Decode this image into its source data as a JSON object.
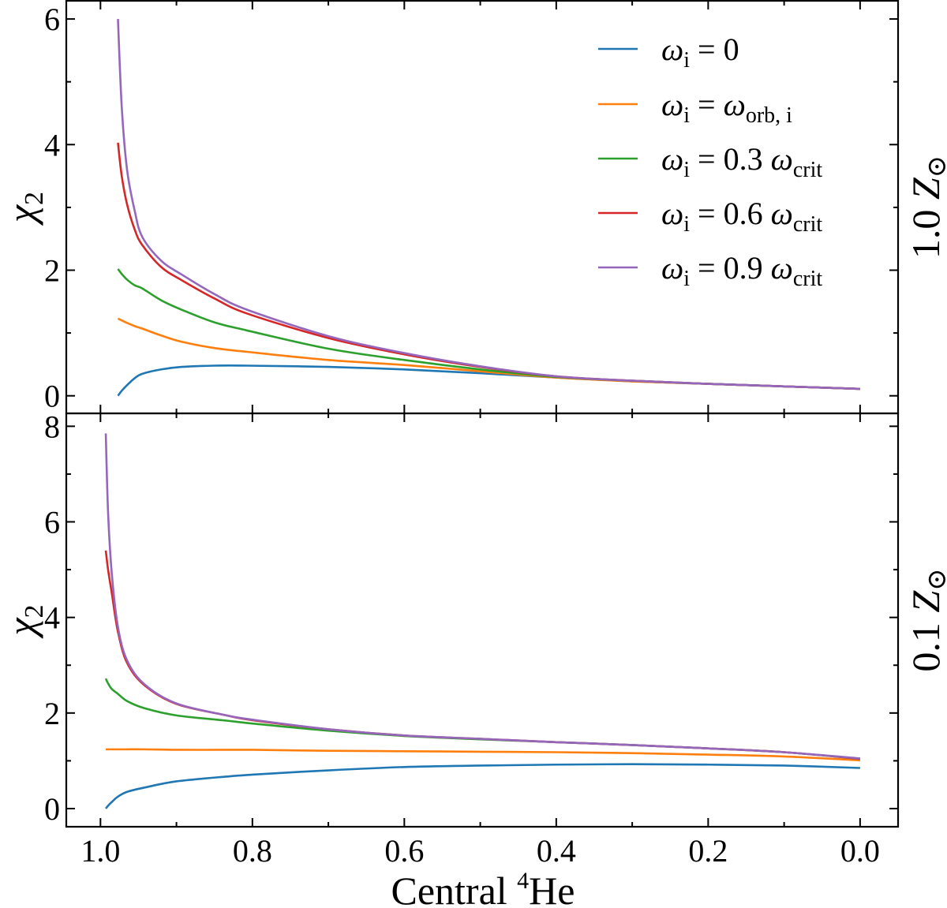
{
  "chart_data": [
    {
      "type": "line",
      "panel_label": {
        "value": "1.0",
        "symbol": "Z",
        "sub": "⊙"
      },
      "ylabel": {
        "symbol": "χ",
        "sub": "2"
      },
      "xlabel": "",
      "xlim": [
        1.045,
        -0.05
      ],
      "ylim": [
        -0.28,
        6.29
      ],
      "x_ticks": [
        "1.0",
        "0.8",
        "0.6",
        "0.4",
        "0.2",
        "0.0"
      ],
      "y_ticks": [
        "0",
        "2",
        "4",
        "6"
      ],
      "legend_placement": "top-right",
      "x": [
        0.977,
        0.972,
        0.965,
        0.955,
        0.945,
        0.92,
        0.893,
        0.85,
        0.807,
        0.7,
        0.6,
        0.5,
        0.4,
        0.3,
        0.2,
        0.1,
        0.0
      ],
      "series": [
        {
          "name": "ωi = 0",
          "legend": {
            "lhs": "ω",
            "lhs_sub": "i",
            "rhs": " = 0",
            "rhs_sub": ""
          },
          "color": "#1f77b4",
          "values": [
            0.0,
            0.08,
            0.17,
            0.28,
            0.35,
            0.42,
            0.46,
            0.48,
            0.48,
            0.46,
            0.42,
            0.36,
            0.29,
            0.23,
            0.19,
            0.15,
            0.11
          ]
        },
        {
          "name": "ωi = ωorb,i",
          "legend": {
            "lhs": "ω",
            "lhs_sub": "i",
            "rhs": " = ω",
            "rhs_sub": "orb, i"
          },
          "color": "#ff7f0e",
          "values": [
            1.23,
            1.2,
            1.16,
            1.11,
            1.07,
            0.96,
            0.86,
            0.76,
            0.7,
            0.57,
            0.49,
            0.39,
            0.29,
            0.23,
            0.19,
            0.15,
            0.11
          ]
        },
        {
          "name": "ωi = 0.3 ωcrit",
          "legend": {
            "lhs": "ω",
            "lhs_sub": "i",
            "rhs": " = 0.3 ω",
            "rhs_sub": "crit"
          },
          "color": "#2ca02c",
          "values": [
            2.02,
            1.94,
            1.85,
            1.76,
            1.71,
            1.52,
            1.37,
            1.17,
            1.04,
            0.75,
            0.57,
            0.42,
            0.3,
            0.24,
            0.19,
            0.15,
            0.11
          ]
        },
        {
          "name": "ωi = 0.6 ωcrit",
          "legend": {
            "lhs": "ω",
            "lhs_sub": "i",
            "rhs": " = 0.6 ω",
            "rhs_sub": "crit"
          },
          "color": "#d62728",
          "values": [
            4.03,
            3.5,
            3.05,
            2.65,
            2.4,
            2.05,
            1.84,
            1.55,
            1.31,
            0.92,
            0.66,
            0.46,
            0.31,
            0.24,
            0.19,
            0.15,
            0.11
          ]
        },
        {
          "name": "ωi = 0.9 ωcrit",
          "legend": {
            "lhs": "ω",
            "lhs_sub": "i",
            "rhs": " = 0.9 ω",
            "rhs_sub": "crit"
          },
          "color": "#9467bd",
          "values": [
            6.0,
            4.6,
            3.6,
            2.95,
            2.53,
            2.15,
            1.93,
            1.62,
            1.37,
            0.95,
            0.68,
            0.47,
            0.31,
            0.24,
            0.19,
            0.15,
            0.11
          ]
        }
      ]
    },
    {
      "type": "line",
      "panel_label": {
        "value": "0.1",
        "symbol": "Z",
        "sub": "⊙"
      },
      "ylabel": {
        "symbol": "χ",
        "sub": "2"
      },
      "xlabel": {
        "text": "Central ",
        "sup": "4",
        "tail": "He"
      },
      "xlim": [
        1.045,
        -0.05
      ],
      "ylim": [
        -0.38,
        8.27
      ],
      "x_ticks": [
        "1.0",
        "0.8",
        "0.6",
        "0.4",
        "0.2",
        "0.0"
      ],
      "y_ticks": [
        "0",
        "2",
        "4",
        "6",
        "8"
      ],
      "x": [
        0.993,
        0.99,
        0.985,
        0.977,
        0.965,
        0.942,
        0.9,
        0.834,
        0.8,
        0.7,
        0.6,
        0.5,
        0.4,
        0.3,
        0.2,
        0.1,
        0.0
      ],
      "series": [
        {
          "name": "ωi = 0",
          "color": "#1f77b4",
          "values": [
            0.0,
            0.06,
            0.14,
            0.25,
            0.35,
            0.44,
            0.57,
            0.67,
            0.71,
            0.8,
            0.87,
            0.9,
            0.92,
            0.93,
            0.92,
            0.9,
            0.85
          ]
        },
        {
          "name": "ωi = ωorb,i",
          "color": "#ff7f0e",
          "values": [
            1.24,
            1.24,
            1.24,
            1.24,
            1.24,
            1.24,
            1.23,
            1.23,
            1.23,
            1.21,
            1.2,
            1.19,
            1.18,
            1.16,
            1.13,
            1.09,
            1.01
          ]
        },
        {
          "name": "ωi = 0.3 ωcrit",
          "color": "#2ca02c",
          "values": [
            2.72,
            2.62,
            2.5,
            2.4,
            2.25,
            2.1,
            1.95,
            1.84,
            1.78,
            1.63,
            1.52,
            1.45,
            1.39,
            1.33,
            1.26,
            1.18,
            1.04
          ]
        },
        {
          "name": "ωi = 0.6 ωcrit",
          "color": "#d62728",
          "values": [
            5.4,
            5.0,
            4.5,
            3.7,
            3.05,
            2.58,
            2.19,
            1.95,
            1.85,
            1.66,
            1.53,
            1.46,
            1.39,
            1.33,
            1.26,
            1.18,
            1.04
          ]
        },
        {
          "name": "ωi = 0.9 ωcrit",
          "color": "#9467bd",
          "values": [
            7.85,
            6.2,
            4.9,
            3.8,
            3.1,
            2.6,
            2.2,
            1.95,
            1.86,
            1.66,
            1.53,
            1.46,
            1.39,
            1.33,
            1.26,
            1.18,
            1.05
          ]
        }
      ]
    }
  ]
}
